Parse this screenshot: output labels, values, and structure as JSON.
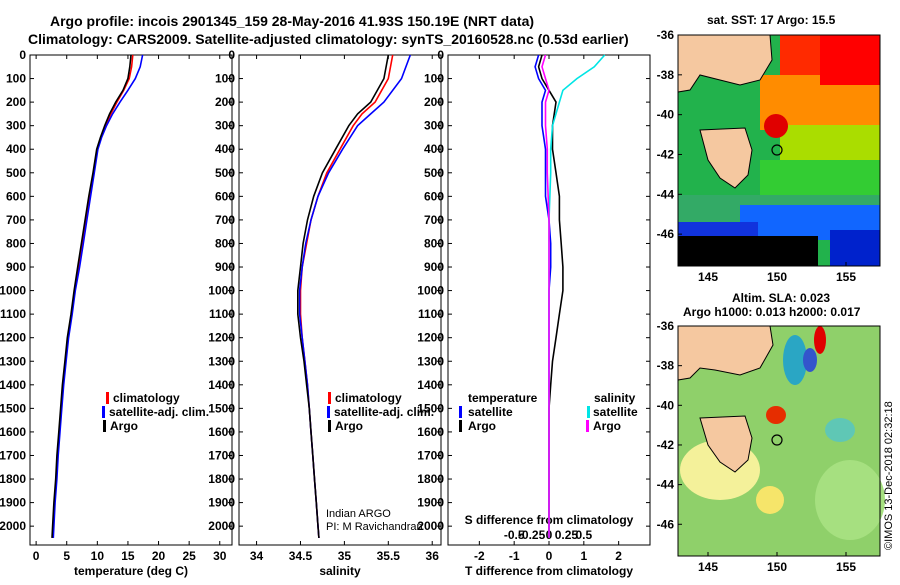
{
  "title_line1": "Argo profile: incois 2901345_159 28-May-2016 41.93S 150.19E (NRT data)",
  "title_line2": "Climatology: CARS2009. Satellite-adjusted climatology: synTS_20160528.nc (0.53d earlier)",
  "credit": "Indian ARGO",
  "credit_pi": "PI: M Ravichandran",
  "stamp": "©IMOS 13-Dec-2018 02:32:18",
  "colors": {
    "climatology": "#ff0000",
    "satellite": "#0000ff",
    "argo": "#000000",
    "sal_satellite": "#00e5e5",
    "sal_argo": "#ff00ff"
  },
  "legend": {
    "climatology": "climatology",
    "satellite": "satellite-adj. clim.",
    "argo": "Argo"
  },
  "diff_legend": {
    "temperature": "temperature",
    "salinity": "salinity",
    "satellite": "satellite",
    "argo": "Argo"
  },
  "map_sst": {
    "title": "sat. SST: 17 Argo: 15.5",
    "lat_ticks": [
      "-36",
      "-38",
      "-40",
      "-42",
      "-44",
      "-46"
    ],
    "lon_ticks": [
      "145",
      "150",
      "155"
    ]
  },
  "map_sla": {
    "title1": "Altim. SLA: 0.023",
    "title2": "Argo h1000: 0.013 h2000: 0.017",
    "lat_ticks": [
      "-36",
      "-38",
      "-40",
      "-42",
      "-44",
      "-46"
    ],
    "lon_ticks": [
      "145",
      "150",
      "155"
    ]
  },
  "chart_data": [
    {
      "type": "line",
      "xlabel": "temperature (deg C)",
      "xlim": [
        -1,
        32
      ],
      "xticks": [
        0,
        5,
        10,
        15,
        20,
        25,
        30
      ],
      "ylim": [
        2080,
        0
      ],
      "yticks": [
        0,
        100,
        200,
        300,
        400,
        500,
        600,
        700,
        800,
        900,
        1000,
        1100,
        1200,
        1300,
        1400,
        1500,
        1600,
        1700,
        1800,
        1900,
        2000
      ],
      "series": [
        {
          "name": "climatology",
          "color": "#ff0000",
          "points": [
            [
              15.8,
              0
            ],
            [
              15.6,
              50
            ],
            [
              15.2,
              100
            ],
            [
              14.3,
              150
            ],
            [
              13.2,
              200
            ],
            [
              12.2,
              250
            ],
            [
              11.3,
              300
            ],
            [
              10.6,
              350
            ],
            [
              10.0,
              400
            ],
            [
              9.4,
              500
            ],
            [
              8.8,
              600
            ],
            [
              8.2,
              700
            ],
            [
              7.6,
              800
            ],
            [
              7.0,
              900
            ],
            [
              6.3,
              1000
            ],
            [
              5.8,
              1100
            ],
            [
              5.2,
              1200
            ],
            [
              4.8,
              1300
            ],
            [
              4.4,
              1400
            ],
            [
              4.1,
              1500
            ],
            [
              3.8,
              1600
            ],
            [
              3.5,
              1700
            ],
            [
              3.3,
              1800
            ],
            [
              3.0,
              1900
            ],
            [
              2.8,
              2000
            ],
            [
              2.7,
              2050
            ]
          ]
        },
        {
          "name": "satellite-adj. clim.",
          "color": "#0000ff",
          "points": [
            [
              17.4,
              0
            ],
            [
              17.0,
              50
            ],
            [
              16.2,
              100
            ],
            [
              15.0,
              150
            ],
            [
              13.7,
              200
            ],
            [
              12.5,
              250
            ],
            [
              11.5,
              300
            ],
            [
              10.7,
              350
            ],
            [
              10.1,
              400
            ],
            [
              9.5,
              500
            ],
            [
              8.9,
              600
            ],
            [
              8.3,
              700
            ],
            [
              7.7,
              800
            ],
            [
              7.1,
              900
            ],
            [
              6.4,
              1000
            ],
            [
              5.9,
              1100
            ],
            [
              5.3,
              1200
            ],
            [
              4.9,
              1300
            ],
            [
              4.5,
              1400
            ],
            [
              4.2,
              1500
            ],
            [
              3.9,
              1600
            ],
            [
              3.6,
              1700
            ],
            [
              3.4,
              1800
            ],
            [
              3.1,
              1900
            ],
            [
              2.9,
              2000
            ],
            [
              2.8,
              2050
            ]
          ]
        },
        {
          "name": "Argo",
          "color": "#000000",
          "points": [
            [
              15.5,
              0
            ],
            [
              15.3,
              50
            ],
            [
              15.0,
              100
            ],
            [
              14.2,
              150
            ],
            [
              13.0,
              200
            ],
            [
              12.0,
              250
            ],
            [
              11.2,
              300
            ],
            [
              10.5,
              350
            ],
            [
              9.9,
              400
            ],
            [
              9.3,
              500
            ],
            [
              8.6,
              600
            ],
            [
              8.0,
              700
            ],
            [
              7.4,
              800
            ],
            [
              6.8,
              900
            ],
            [
              6.2,
              1000
            ],
            [
              5.7,
              1100
            ],
            [
              5.1,
              1200
            ],
            [
              4.7,
              1300
            ],
            [
              4.3,
              1400
            ],
            [
              4.0,
              1500
            ],
            [
              3.7,
              1600
            ],
            [
              3.4,
              1700
            ],
            [
              3.2,
              1800
            ],
            [
              2.9,
              1900
            ],
            [
              2.7,
              2000
            ],
            [
              2.6,
              2050
            ]
          ]
        }
      ]
    },
    {
      "type": "line",
      "xlabel": "salinity",
      "xlim": [
        33.8,
        36.1
      ],
      "xticks": [
        34,
        34.5,
        35,
        35.5,
        36
      ],
      "ylim": [
        2080,
        0
      ],
      "series": [
        {
          "name": "climatology",
          "color": "#ff0000",
          "points": [
            [
              35.55,
              0
            ],
            [
              35.5,
              100
            ],
            [
              35.35,
              200
            ],
            [
              35.2,
              250
            ],
            [
              35.1,
              300
            ],
            [
              34.95,
              400
            ],
            [
              34.8,
              500
            ],
            [
              34.7,
              600
            ],
            [
              34.62,
              700
            ],
            [
              34.57,
              800
            ],
            [
              34.52,
              900
            ],
            [
              34.5,
              1000
            ],
            [
              34.5,
              1100
            ],
            [
              34.52,
              1200
            ],
            [
              34.55,
              1300
            ],
            [
              34.58,
              1400
            ],
            [
              34.6,
              1500
            ],
            [
              34.62,
              1600
            ],
            [
              34.64,
              1700
            ],
            [
              34.66,
              1800
            ],
            [
              34.68,
              1900
            ],
            [
              34.7,
              2000
            ],
            [
              34.71,
              2050
            ]
          ]
        },
        {
          "name": "satellite-adj. clim.",
          "color": "#0000ff",
          "points": [
            [
              35.75,
              0
            ],
            [
              35.65,
              100
            ],
            [
              35.45,
              200
            ],
            [
              35.3,
              250
            ],
            [
              35.15,
              300
            ],
            [
              34.98,
              400
            ],
            [
              34.82,
              500
            ],
            [
              34.7,
              600
            ],
            [
              34.62,
              700
            ],
            [
              34.56,
              800
            ],
            [
              34.52,
              900
            ],
            [
              34.49,
              1000
            ],
            [
              34.49,
              1100
            ],
            [
              34.52,
              1200
            ],
            [
              34.55,
              1300
            ],
            [
              34.58,
              1400
            ],
            [
              34.6,
              1500
            ],
            [
              34.62,
              1600
            ],
            [
              34.64,
              1700
            ],
            [
              34.66,
              1800
            ],
            [
              34.68,
              1900
            ],
            [
              34.7,
              2000
            ],
            [
              34.71,
              2050
            ]
          ]
        },
        {
          "name": "Argo",
          "color": "#000000",
          "points": [
            [
              35.5,
              0
            ],
            [
              35.45,
              100
            ],
            [
              35.3,
              200
            ],
            [
              35.15,
              250
            ],
            [
              35.05,
              300
            ],
            [
              34.9,
              400
            ],
            [
              34.75,
              500
            ],
            [
              34.65,
              600
            ],
            [
              34.58,
              700
            ],
            [
              34.53,
              800
            ],
            [
              34.5,
              900
            ],
            [
              34.47,
              1000
            ],
            [
              34.47,
              1100
            ],
            [
              34.5,
              1200
            ],
            [
              34.54,
              1300
            ],
            [
              34.57,
              1400
            ],
            [
              34.6,
              1500
            ],
            [
              34.62,
              1600
            ],
            [
              34.64,
              1700
            ],
            [
              34.66,
              1800
            ],
            [
              34.68,
              1900
            ],
            [
              34.7,
              2000
            ],
            [
              34.71,
              2050
            ]
          ]
        }
      ]
    },
    {
      "type": "line",
      "xlabel": "T difference from climatology",
      "xlim": [
        -2.9,
        2.9
      ],
      "xticks": [
        -2,
        -1,
        0,
        1,
        2
      ],
      "s_label": "S difference from climatology",
      "s_ticks": [
        "-0.5",
        "-0.25",
        "0",
        "0.25",
        "0.5"
      ],
      "ylim": [
        2080,
        0
      ],
      "series": [
        {
          "name": "temperature satellite",
          "color": "#0000ff",
          "points": [
            [
              -0.3,
              0
            ],
            [
              -0.4,
              50
            ],
            [
              -0.3,
              100
            ],
            [
              -0.1,
              150
            ],
            [
              -0.2,
              200
            ],
            [
              -0.2,
              300
            ],
            [
              -0.1,
              400
            ],
            [
              -0.1,
              500
            ],
            [
              -0.1,
              600
            ],
            [
              0.0,
              700
            ],
            [
              0.05,
              800
            ],
            [
              0.05,
              900
            ],
            [
              0.0,
              1000
            ],
            [
              0.0,
              1100
            ],
            [
              0.0,
              1200
            ],
            [
              0.0,
              1400
            ],
            [
              0.0,
              1600
            ],
            [
              0.0,
              1800
            ],
            [
              0.0,
              2000
            ],
            [
              0.0,
              2050
            ]
          ]
        },
        {
          "name": "temperature Argo",
          "color": "#000000",
          "points": [
            [
              -0.2,
              0
            ],
            [
              -0.3,
              50
            ],
            [
              -0.2,
              100
            ],
            [
              0.0,
              150
            ],
            [
              0.2,
              200
            ],
            [
              0.1,
              300
            ],
            [
              0.1,
              400
            ],
            [
              0.2,
              500
            ],
            [
              0.3,
              600
            ],
            [
              0.3,
              700
            ],
            [
              0.35,
              800
            ],
            [
              0.4,
              900
            ],
            [
              0.4,
              1000
            ],
            [
              0.3,
              1100
            ],
            [
              0.2,
              1200
            ],
            [
              0.1,
              1300
            ],
            [
              0.05,
              1400
            ],
            [
              0.0,
              1500
            ],
            [
              0.0,
              1700
            ],
            [
              0.0,
              1900
            ],
            [
              0.0,
              2050
            ]
          ]
        },
        {
          "name": "salinity satellite",
          "color": "#00e5e5",
          "points": [
            [
              1.6,
              0
            ],
            [
              1.3,
              50
            ],
            [
              0.8,
              100
            ],
            [
              0.4,
              150
            ],
            [
              0.3,
              200
            ],
            [
              0.1,
              300
            ],
            [
              0.05,
              400
            ],
            [
              0.05,
              500
            ],
            [
              0.0,
              700
            ],
            [
              0.0,
              900
            ],
            [
              0.0,
              1100
            ],
            [
              0.0,
              1300
            ],
            [
              0.0,
              1500
            ],
            [
              0.0,
              1800
            ],
            [
              0.0,
              2050
            ]
          ]
        },
        {
          "name": "salinity Argo",
          "color": "#ff00ff",
          "points": [
            [
              -0.1,
              0
            ],
            [
              -0.2,
              50
            ],
            [
              -0.1,
              100
            ],
            [
              0.0,
              150
            ],
            [
              -0.1,
              200
            ],
            [
              -0.1,
              300
            ],
            [
              -0.05,
              400
            ],
            [
              -0.05,
              500
            ],
            [
              0.0,
              700
            ],
            [
              0.0,
              900
            ],
            [
              0.0,
              1100
            ],
            [
              0.0,
              1300
            ],
            [
              0.0,
              1500
            ],
            [
              0.0,
              1800
            ],
            [
              0.0,
              2050
            ]
          ]
        }
      ]
    }
  ]
}
